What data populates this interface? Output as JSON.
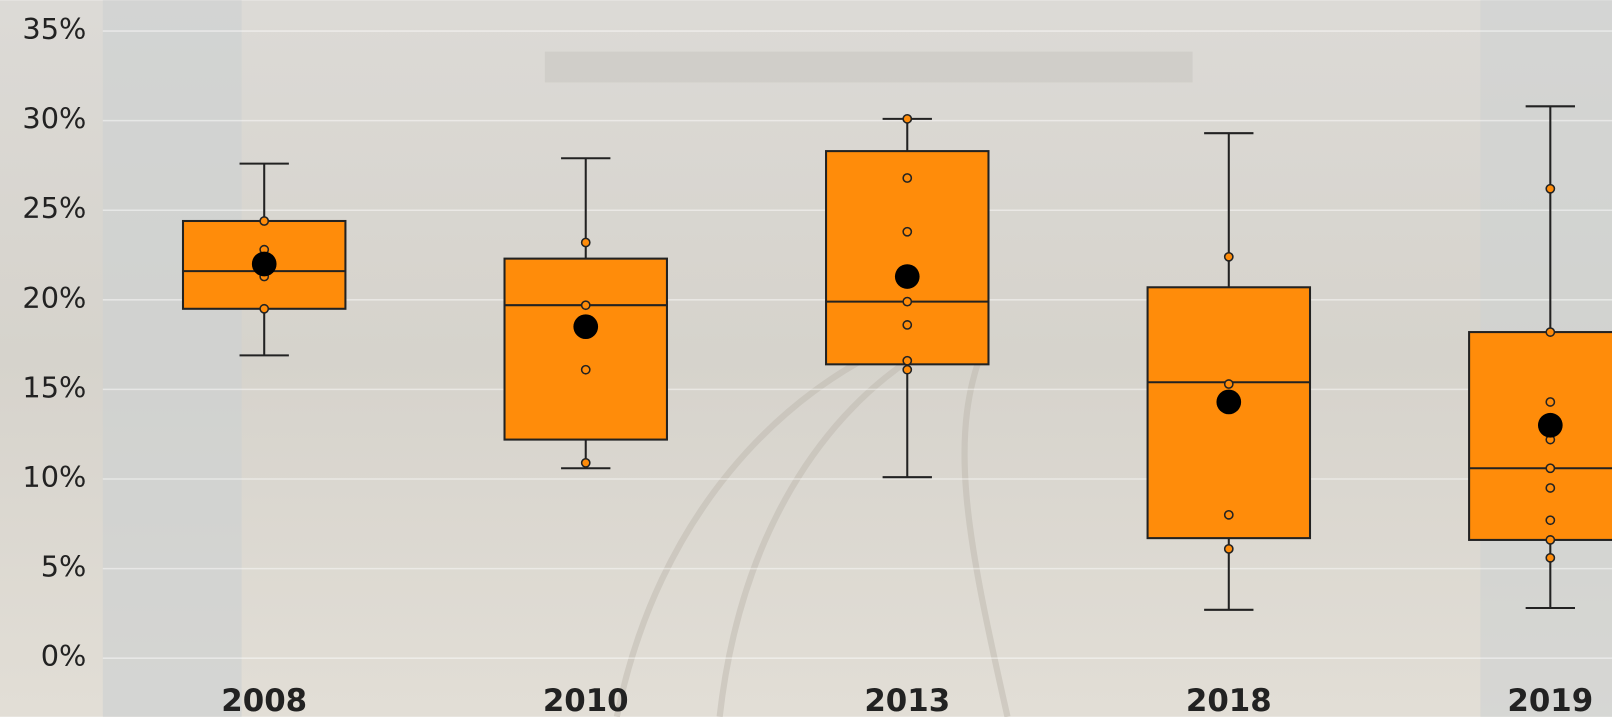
{
  "chart_data": {
    "type": "box",
    "categories": [
      "2008",
      "2010",
      "2013",
      "2018",
      "2019"
    ],
    "color": "#ff8c0a",
    "ylim": [
      0,
      35
    ],
    "yticks": [
      {
        "value": 0,
        "label": "0%"
      },
      {
        "value": 5,
        "label": "5%"
      },
      {
        "value": 10,
        "label": "10%"
      },
      {
        "value": 15,
        "label": "15%"
      },
      {
        "value": 20,
        "label": "20%"
      },
      {
        "value": 25,
        "label": "25%"
      },
      {
        "value": 30,
        "label": "30%"
      },
      {
        "value": 35,
        "label": "35%"
      }
    ],
    "grid": true,
    "boxes": [
      {
        "min": 16.9,
        "q1": 19.5,
        "median": 21.6,
        "q3": 24.4,
        "max": 27.6,
        "mean": 22.0,
        "points": [
          24.4,
          22.8,
          21.3,
          19.5
        ]
      },
      {
        "min": 10.6,
        "q1": 12.2,
        "median": 19.7,
        "q3": 22.3,
        "max": 27.9,
        "mean": 18.5,
        "points": [
          23.2,
          19.7,
          16.1,
          10.9
        ]
      },
      {
        "min": 10.1,
        "q1": 16.4,
        "median": 19.9,
        "q3": 28.3,
        "max": 30.1,
        "mean": 21.3,
        "points": [
          30.1,
          26.8,
          23.8,
          19.9,
          18.6,
          16.6,
          16.1
        ]
      },
      {
        "min": 2.7,
        "q1": 6.7,
        "median": 15.4,
        "q3": 20.7,
        "max": 29.3,
        "mean": 14.3,
        "points": [
          22.4,
          15.3,
          8.0,
          6.1
        ]
      },
      {
        "min": 2.8,
        "q1": 6.6,
        "median": 10.6,
        "q3": 18.2,
        "max": 30.8,
        "mean": 13.0,
        "points": [
          26.2,
          18.2,
          14.3,
          12.2,
          10.6,
          9.5,
          7.7,
          6.6,
          5.6
        ]
      }
    ]
  }
}
